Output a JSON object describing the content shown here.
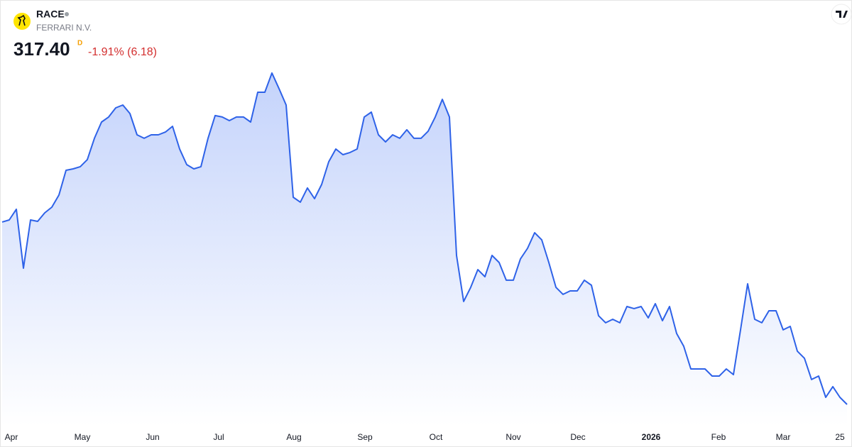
{
  "header": {
    "symbol": "RACE",
    "name": "FERRARI N.V.",
    "price": "317.40",
    "interval": "D",
    "change": "-1.91% (6.18)"
  },
  "chart_data": {
    "type": "area",
    "color": "#2e62e8",
    "values": [
      422.8,
      424.0,
      430.2,
      396.1,
      424.0,
      423.2,
      428.1,
      431.4,
      438.4,
      452.7,
      453.5,
      454.8,
      458.9,
      471.2,
      480.6,
      483.5,
      488.8,
      490.4,
      485.5,
      473.2,
      471.2,
      473.2,
      473.2,
      474.8,
      478.1,
      465.0,
      456.0,
      453.5,
      454.8,
      471.2,
      484.3,
      483.5,
      481.4,
      483.5,
      483.5,
      480.6,
      497.8,
      497.8,
      508.9,
      499.9,
      490.4,
      437.1,
      434.3,
      442.5,
      436.3,
      444.5,
      457.6,
      465.0,
      461.7,
      463.0,
      465.0,
      483.5,
      486.3,
      473.2,
      469.1,
      473.2,
      471.2,
      476.1,
      471.2,
      471.2,
      475.3,
      483.5,
      493.7,
      483.5,
      403.5,
      376.9,
      385.1,
      395.3,
      391.2,
      403.5,
      399.4,
      389.2,
      389.2,
      401.5,
      407.6,
      416.6,
      412.5,
      399.4,
      385.1,
      381.0,
      383.0,
      383.0,
      389.2,
      386.3,
      368.7,
      364.6,
      366.6,
      364.6,
      374.0,
      372.8,
      374.0,
      367.4,
      375.6,
      365.8,
      374.0,
      358.4,
      351.0,
      337.9,
      337.9,
      337.9,
      333.8,
      333.8,
      337.9,
      334.6,
      360.5,
      387.1,
      366.6,
      364.6,
      371.5,
      371.5,
      360.5,
      362.5,
      348.2,
      344.1,
      331.8,
      333.8,
      321.5,
      327.7,
      321.5,
      317.4
    ],
    "xlim": [
      0,
      119
    ],
    "xticks": [
      {
        "value": 1.3,
        "label": "Apr"
      },
      {
        "value": 11.3,
        "label": "May"
      },
      {
        "value": 21.2,
        "label": "Jun"
      },
      {
        "value": 30.5,
        "label": "Jul"
      },
      {
        "value": 41.1,
        "label": "Aug"
      },
      {
        "value": 51.1,
        "label": "Sep"
      },
      {
        "value": 61.1,
        "label": "Oct"
      },
      {
        "value": 72,
        "label": "Nov"
      },
      {
        "value": 81.1,
        "label": "Dec"
      },
      {
        "value": 91.4,
        "label": "2026"
      },
      {
        "value": 100.9,
        "label": "Feb"
      },
      {
        "value": 110,
        "label": "Mar"
      },
      {
        "value": 118,
        "label": "25"
      }
    ],
    "ylim": [
      305.1,
      526.5
    ]
  }
}
